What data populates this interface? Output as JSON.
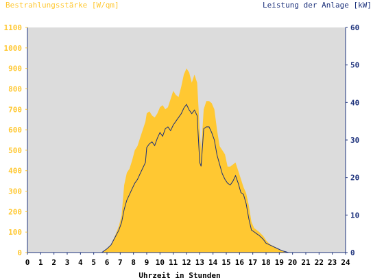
{
  "chart_data": {
    "type": "area",
    "left_axis_title": "Bestrahlungsstärke [W/qm]",
    "right_axis_title": "Leistung der Anlage [kW]",
    "xlabel": "Uhrzeit in Stunden",
    "xlim": [
      0,
      24
    ],
    "x_ticks": [
      "0",
      "1",
      "2",
      "3",
      "4",
      "5",
      "6",
      "7",
      "8",
      "9",
      "10",
      "11",
      "12",
      "13",
      "14",
      "15",
      "16",
      "17",
      "18",
      "19",
      "20",
      "21",
      "22",
      "23",
      "24"
    ],
    "ylim_left": [
      0,
      1100
    ],
    "y_ticks_left": [
      "0",
      "100",
      "200",
      "300",
      "400",
      "500",
      "600",
      "700",
      "800",
      "900",
      "1000",
      "1100"
    ],
    "ylim_right": [
      0,
      60
    ],
    "y_ticks_right": [
      "0",
      "10",
      "20",
      "30",
      "40",
      "50",
      "60"
    ],
    "grid": false,
    "colors": {
      "irradiance_fill": "#ffc832",
      "power_line": "#1a2f7a",
      "plot_background": "#dcdcdc",
      "axis": "#1a2f7a"
    },
    "series": [
      {
        "axis": "left",
        "render": "area",
        "x": [
          0,
          5.6,
          5.8,
          6.0,
          6.3,
          6.6,
          6.9,
          7.1,
          7.3,
          7.5,
          7.7,
          7.9,
          8.1,
          8.3,
          8.5,
          8.7,
          8.9,
          9.0,
          9.2,
          9.4,
          9.6,
          9.8,
          10.0,
          10.2,
          10.4,
          10.6,
          10.8,
          11.0,
          11.2,
          11.4,
          11.6,
          11.8,
          12.0,
          12.2,
          12.4,
          12.6,
          12.8,
          13.0,
          13.1,
          13.3,
          13.5,
          13.7,
          13.9,
          14.1,
          14.3,
          14.5,
          14.7,
          14.9,
          15.1,
          15.3,
          15.5,
          15.7,
          15.9,
          16.1,
          16.3,
          16.5,
          16.7,
          16.9,
          17.1,
          17.3,
          17.5,
          17.8,
          18.0,
          18.3,
          18.6,
          18.9,
          19.2,
          19.5,
          19.7,
          24
        ],
        "values": [
          0,
          0,
          10,
          20,
          40,
          80,
          130,
          180,
          330,
          390,
          410,
          450,
          500,
          520,
          560,
          600,
          640,
          680,
          690,
          670,
          660,
          680,
          710,
          720,
          700,
          710,
          750,
          790,
          770,
          760,
          810,
          870,
          900,
          880,
          830,
          870,
          830,
          600,
          500,
          700,
          740,
          740,
          730,
          700,
          600,
          520,
          500,
          480,
          420,
          420,
          430,
          440,
          400,
          360,
          320,
          290,
          230,
          150,
          120,
          110,
          100,
          80,
          60,
          40,
          30,
          20,
          10,
          5,
          0,
          0
        ]
      },
      {
        "axis": "right",
        "render": "line",
        "x": [
          0,
          5.6,
          5.8,
          6.0,
          6.3,
          6.6,
          6.9,
          7.1,
          7.3,
          7.5,
          7.7,
          7.9,
          8.1,
          8.3,
          8.5,
          8.7,
          8.9,
          9.0,
          9.2,
          9.4,
          9.6,
          9.8,
          10.0,
          10.2,
          10.4,
          10.6,
          10.8,
          11.0,
          11.2,
          11.4,
          11.6,
          11.8,
          12.0,
          12.2,
          12.4,
          12.6,
          12.8,
          13.0,
          13.1,
          13.3,
          13.5,
          13.7,
          13.9,
          14.1,
          14.3,
          14.5,
          14.7,
          14.9,
          15.1,
          15.3,
          15.5,
          15.7,
          15.9,
          16.1,
          16.3,
          16.5,
          16.7,
          16.9,
          17.1,
          17.3,
          17.5,
          17.8,
          18.0,
          18.3,
          18.6,
          18.9,
          19.2,
          19.5,
          19.7,
          24
        ],
        "values": [
          0,
          0,
          0.5,
          1,
          2,
          4,
          6,
          8,
          11.5,
          14,
          15.5,
          17,
          18.5,
          19.5,
          21,
          22.5,
          24,
          28,
          29,
          29.5,
          28.5,
          30.5,
          32,
          31,
          33,
          33.5,
          32.5,
          34,
          35,
          36,
          37,
          38.5,
          39.5,
          38,
          37,
          38,
          36.5,
          24,
          23,
          33,
          33.5,
          33.5,
          32,
          30,
          26,
          23.5,
          21,
          19.5,
          18.5,
          18,
          19,
          20.5,
          18.5,
          16,
          15.5,
          13,
          9,
          6,
          5.5,
          5,
          4.5,
          3.5,
          2.5,
          2,
          1.5,
          1,
          0.5,
          0.2,
          0,
          0
        ]
      }
    ]
  }
}
